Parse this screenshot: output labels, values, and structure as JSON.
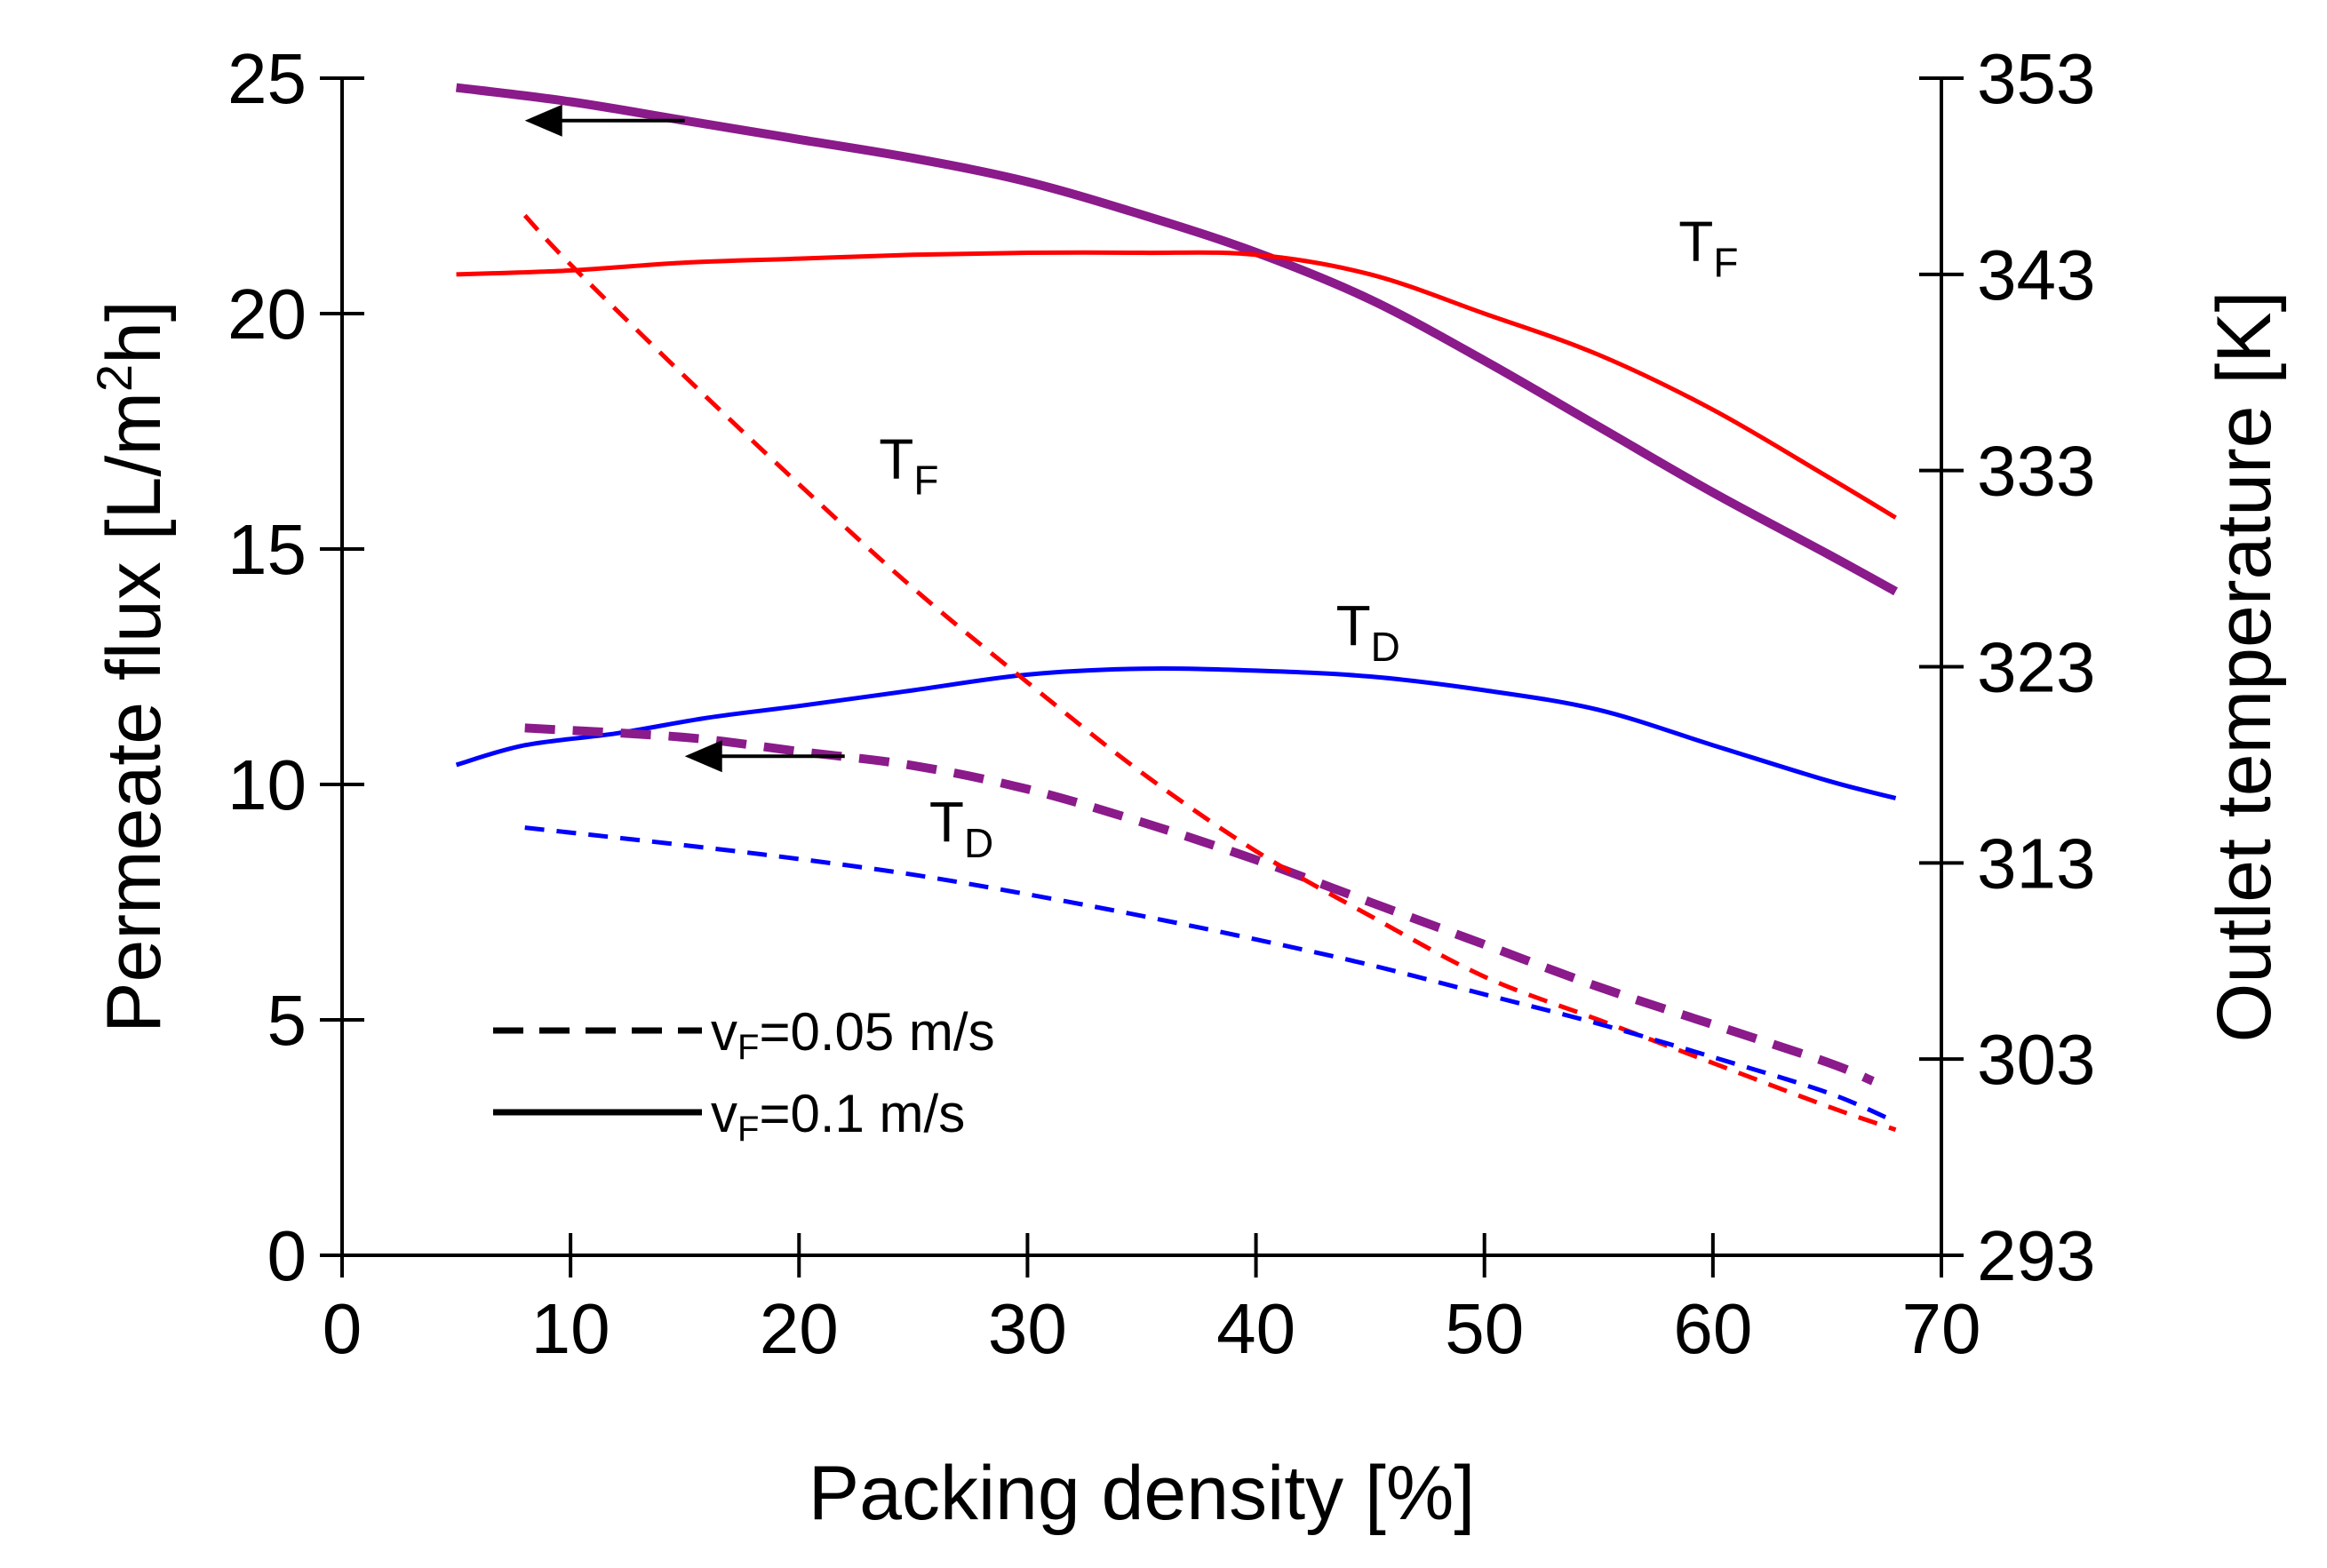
{
  "chart_data": {
    "type": "line",
    "xlabel": "Packing density [%]",
    "ylabel_left": "Permeate flux [L/m2h]",
    "ylabel_left_parts": {
      "main": "Permeate flux [L/m",
      "sup": "2",
      "tail": "h]"
    },
    "ylabel_right": "Outlet temperature [K]",
    "xlim": [
      0,
      70
    ],
    "ylim_left": [
      0,
      25
    ],
    "ylim_right": [
      293,
      353
    ],
    "x_ticks": [
      "0",
      "10",
      "20",
      "30",
      "40",
      "50",
      "60",
      "70"
    ],
    "y_left_ticks": [
      "0",
      "5",
      "10",
      "15",
      "20",
      "25"
    ],
    "y_right_ticks": [
      "293",
      "303",
      "313",
      "323",
      "333",
      "343",
      "353"
    ],
    "series": [
      {
        "name": "Flux vF=0.1 m/s",
        "axis": "left",
        "color": "#8B1A8B",
        "style": "solid",
        "width": "thick",
        "x": [
          5,
          10,
          15,
          20,
          25,
          30,
          35,
          40,
          45,
          50,
          55,
          60,
          65,
          68
        ],
        "y": [
          24.8,
          24.5,
          24.1,
          23.7,
          23.3,
          22.8,
          22.1,
          21.3,
          20.3,
          19.0,
          17.6,
          16.2,
          14.9,
          14.1
        ]
      },
      {
        "name": "TF vF=0.1 m/s",
        "axis": "right",
        "color": "#FF0000",
        "style": "solid",
        "width": "thin",
        "x": [
          5,
          10,
          15,
          20,
          25,
          30,
          35,
          40,
          45,
          50,
          55,
          60,
          65,
          68
        ],
        "y": [
          343.0,
          343.2,
          343.6,
          343.8,
          344.0,
          344.1,
          344.1,
          344.0,
          343.0,
          341.0,
          338.9,
          336.1,
          332.7,
          330.6
        ]
      },
      {
        "name": "TD vF=0.1 m/s",
        "axis": "right",
        "color": "#0000FF",
        "style": "solid",
        "width": "thin",
        "x": [
          5,
          8,
          12,
          16,
          20,
          25,
          30,
          35,
          40,
          45,
          50,
          55,
          60,
          65,
          68
        ],
        "y": [
          318.0,
          319.0,
          319.6,
          320.4,
          321.0,
          321.8,
          322.6,
          322.9,
          322.8,
          322.5,
          321.8,
          320.8,
          319.0,
          317.2,
          316.3
        ]
      },
      {
        "name": "Flux vF=0.05 m/s",
        "axis": "left",
        "color": "#8B1A8B",
        "style": "dashed",
        "width": "thick",
        "x": [
          8,
          15,
          20,
          25,
          30,
          35,
          40,
          45,
          50,
          55,
          60,
          65,
          67
        ],
        "y": [
          11.2,
          11.0,
          10.7,
          10.4,
          9.9,
          9.2,
          8.4,
          7.5,
          6.6,
          5.7,
          4.9,
          4.1,
          3.7
        ]
      },
      {
        "name": "TF vF=0.05 m/s",
        "axis": "right",
        "color": "#FF0000",
        "style": "dashed",
        "width": "thin",
        "x": [
          8,
          10,
          15,
          20,
          25,
          30,
          35,
          40,
          45,
          50,
          55,
          60,
          65,
          68
        ],
        "y": [
          346.0,
          343.5,
          337.8,
          332.3,
          327.0,
          322.2,
          317.6,
          313.6,
          310.3,
          307.2,
          305.0,
          302.8,
          300.6,
          299.4
        ]
      },
      {
        "name": "TD vF=0.05 m/s",
        "axis": "right",
        "color": "#0000FF",
        "style": "dashed",
        "width": "thin",
        "x": [
          8,
          15,
          20,
          25,
          30,
          35,
          40,
          45,
          50,
          55,
          60,
          65,
          68
        ],
        "y": [
          314.8,
          313.9,
          313.2,
          312.4,
          311.4,
          310.3,
          309.1,
          307.8,
          306.3,
          304.8,
          303.1,
          301.3,
          299.8
        ]
      }
    ],
    "annotations": [
      {
        "main": "T",
        "sub": "F",
        "series": "TF vF=0.1 m/s",
        "x": 58.5,
        "y": 343.7,
        "axis": "right"
      },
      {
        "main": "T",
        "sub": "F",
        "series": "TF vF=0.05 m/s",
        "x": 23.5,
        "y": 332.6,
        "axis": "right"
      },
      {
        "main": "T",
        "sub": "D",
        "series": "TD vF=0.1 m/s",
        "x": 43.5,
        "y": 324.1,
        "axis": "right"
      },
      {
        "main": "T",
        "sub": "D",
        "series": "TD vF=0.05 m/s",
        "x": 25.7,
        "y": 314.1,
        "axis": "right"
      }
    ],
    "arrows": [
      {
        "points_to": "left axis",
        "series": "Flux vF=0.1 m/s",
        "x_from": 15,
        "x_to": 8,
        "y": 24.1
      },
      {
        "points_to": "left axis",
        "series": "Flux vF=0.05 m/s",
        "x_from": 22,
        "x_to": 15,
        "y": 10.6
      }
    ],
    "legend": {
      "placement": "bottom-left",
      "entries": [
        {
          "label_main": "v",
          "label_sub": "F",
          "label_tail": "=0.05 m/s",
          "style": "dashed"
        },
        {
          "label_main": "v",
          "label_sub": "F",
          "label_tail": "=0.1 m/s",
          "style": "solid"
        }
      ]
    }
  }
}
